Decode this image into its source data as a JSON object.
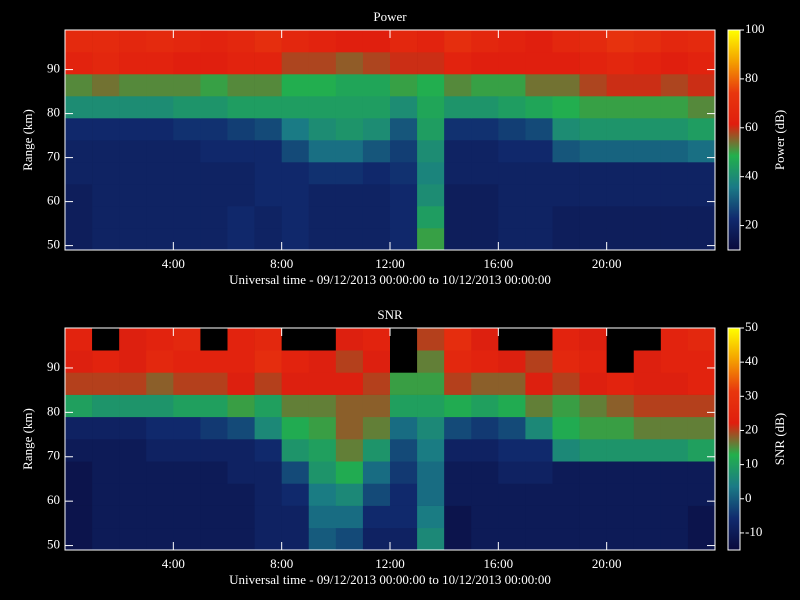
{
  "chart_data": [
    {
      "type": "heatmap",
      "title": "Power",
      "xlabel": "Universal time - 09/12/2013 00:00:00 to 10/12/2013 00:00:00",
      "ylabel": "Range (km)",
      "colorbar_label": "Power (dB)",
      "x": [
        0.5,
        1.5,
        2.5,
        3.5,
        4.5,
        5.5,
        6.5,
        7.5,
        8.5,
        9.5,
        10.5,
        11.5,
        12.5,
        13.5,
        14.5,
        15.5,
        16.5,
        17.5,
        18.5,
        19.5,
        20.5,
        21.5,
        22.5,
        23.5
      ],
      "y": [
        51.5,
        56.5,
        61.5,
        66.5,
        71.5,
        76.5,
        81.5,
        86.5,
        91.5,
        96.5
      ],
      "values": [
        [
          18,
          20,
          20,
          20,
          20,
          20,
          22,
          20,
          22,
          20,
          20,
          20,
          22,
          50,
          18,
          18,
          20,
          20,
          18,
          18,
          18,
          18,
          18,
          18
        ],
        [
          18,
          20,
          20,
          20,
          20,
          20,
          22,
          20,
          22,
          20,
          20,
          20,
          22,
          44,
          18,
          18,
          20,
          20,
          18,
          18,
          18,
          18,
          18,
          18
        ],
        [
          18,
          20,
          20,
          20,
          20,
          20,
          20,
          22,
          22,
          20,
          20,
          20,
          22,
          40,
          18,
          18,
          20,
          20,
          20,
          20,
          20,
          20,
          20,
          20
        ],
        [
          20,
          20,
          20,
          20,
          20,
          20,
          20,
          22,
          22,
          24,
          24,
          22,
          24,
          38,
          20,
          20,
          20,
          20,
          20,
          20,
          20,
          20,
          20,
          20
        ],
        [
          20,
          20,
          20,
          20,
          20,
          22,
          22,
          22,
          28,
          34,
          34,
          30,
          26,
          40,
          20,
          20,
          22,
          22,
          30,
          32,
          32,
          32,
          32,
          34
        ],
        [
          22,
          22,
          22,
          22,
          24,
          24,
          26,
          28,
          36,
          40,
          42,
          40,
          30,
          44,
          24,
          24,
          26,
          28,
          40,
          42,
          42,
          42,
          42,
          44
        ],
        [
          40,
          40,
          40,
          40,
          42,
          42,
          44,
          44,
          44,
          44,
          44,
          44,
          40,
          46,
          42,
          42,
          44,
          46,
          48,
          50,
          50,
          50,
          50,
          52
        ],
        [
          52,
          54,
          52,
          52,
          52,
          50,
          52,
          52,
          48,
          48,
          46,
          46,
          50,
          48,
          52,
          50,
          50,
          54,
          54,
          58,
          60,
          60,
          58,
          60
        ],
        [
          64,
          66,
          64,
          64,
          62,
          62,
          64,
          64,
          58,
          58,
          56,
          58,
          60,
          60,
          64,
          62,
          62,
          62,
          62,
          64,
          66,
          64,
          62,
          64
        ],
        [
          68,
          68,
          66,
          68,
          66,
          64,
          66,
          70,
          66,
          64,
          62,
          62,
          66,
          64,
          70,
          66,
          64,
          62,
          66,
          68,
          72,
          70,
          66,
          68
        ]
      ],
      "xlim": [
        0,
        24
      ],
      "xticks": [
        {
          "value": 4,
          "label": "4:00"
        },
        {
          "value": 8,
          "label": "8:00"
        },
        {
          "value": 12,
          "label": "12:00"
        },
        {
          "value": 16,
          "label": "16:00"
        },
        {
          "value": 20,
          "label": "20:00"
        }
      ],
      "ylim": [
        49,
        99
      ],
      "yticks": [
        50,
        60,
        70,
        80,
        90
      ],
      "clim": [
        10,
        100
      ],
      "cticks": [
        20,
        40,
        60,
        80,
        100
      ],
      "colormap": [
        "#0a0a3c",
        "#102a6e",
        "#1a7a86",
        "#22b04c",
        "#e01e0e",
        "#e8360e",
        "#f4a000",
        "#ffff00"
      ]
    },
    {
      "type": "heatmap",
      "title": "SNR",
      "xlabel": "Universal time - 09/12/2013 00:00:00 to 10/12/2013 00:00:00",
      "ylabel": "Range (km)",
      "colorbar_label": "SNR (dB)",
      "x": [
        0.5,
        1.5,
        2.5,
        3.5,
        4.5,
        5.5,
        6.5,
        7.5,
        8.5,
        9.5,
        10.5,
        11.5,
        12.5,
        13.5,
        14.5,
        15.5,
        16.5,
        17.5,
        18.5,
        19.5,
        20.5,
        21.5,
        22.5,
        23.5
      ],
      "y": [
        51.5,
        56.5,
        61.5,
        66.5,
        71.5,
        76.5,
        81.5,
        86.5,
        91.5,
        96.5
      ],
      "values": [
        [
          -12,
          -10,
          -10,
          -10,
          -10,
          -10,
          -10,
          -8,
          -8,
          0,
          -2,
          -8,
          -8,
          6,
          -12,
          -10,
          -10,
          -10,
          -10,
          -10,
          -10,
          -10,
          -10,
          -12
        ],
        [
          -12,
          -10,
          -10,
          -10,
          -10,
          -10,
          -10,
          -8,
          -8,
          2,
          2,
          -6,
          -6,
          4,
          -12,
          -10,
          -10,
          -10,
          -10,
          -10,
          -10,
          -10,
          -10,
          -12
        ],
        [
          -12,
          -10,
          -10,
          -10,
          -10,
          -10,
          -10,
          -8,
          -6,
          4,
          6,
          -2,
          -6,
          2,
          -10,
          -10,
          -10,
          -10,
          -10,
          -10,
          -10,
          -10,
          -10,
          -10
        ],
        [
          -12,
          -10,
          -10,
          -10,
          -10,
          -10,
          -8,
          -8,
          -2,
          8,
          12,
          2,
          -4,
          2,
          -10,
          -10,
          -8,
          -8,
          -10,
          -10,
          -10,
          -10,
          -10,
          -10
        ],
        [
          -10,
          -10,
          -10,
          -8,
          -8,
          -8,
          -8,
          -6,
          8,
          10,
          16,
          8,
          -2,
          4,
          -8,
          -8,
          -6,
          -6,
          6,
          8,
          8,
          8,
          8,
          10
        ],
        [
          -8,
          -8,
          -8,
          -6,
          -6,
          -4,
          -2,
          6,
          12,
          14,
          18,
          16,
          2,
          6,
          -2,
          -4,
          -2,
          6,
          12,
          14,
          14,
          16,
          16,
          16
        ],
        [
          10,
          8,
          8,
          8,
          10,
          10,
          14,
          10,
          16,
          16,
          18,
          18,
          10,
          10,
          12,
          10,
          12,
          16,
          14,
          16,
          18,
          20,
          20,
          20
        ],
        [
          20,
          20,
          20,
          18,
          20,
          20,
          22,
          20,
          22,
          22,
          22,
          20,
          14,
          14,
          20,
          18,
          18,
          22,
          20,
          22,
          24,
          22,
          22,
          24
        ],
        [
          22,
          24,
          22,
          26,
          24,
          24,
          24,
          28,
          24,
          22,
          20,
          22,
          null,
          16,
          26,
          24,
          22,
          20,
          26,
          24,
          null,
          22,
          24,
          24
        ],
        [
          24,
          null,
          22,
          24,
          26,
          null,
          24,
          26,
          null,
          null,
          22,
          24,
          null,
          20,
          28,
          22,
          null,
          null,
          24,
          22,
          null,
          null,
          24,
          26
        ]
      ],
      "xlim": [
        0,
        24
      ],
      "xticks": [
        {
          "value": 4,
          "label": "4:00"
        },
        {
          "value": 8,
          "label": "8:00"
        },
        {
          "value": 12,
          "label": "12:00"
        },
        {
          "value": 16,
          "label": "16:00"
        },
        {
          "value": 20,
          "label": "20:00"
        }
      ],
      "ylim": [
        49,
        99
      ],
      "yticks": [
        50,
        60,
        70,
        80,
        90
      ],
      "clim": [
        -15,
        50
      ],
      "cticks": [
        -10,
        0,
        10,
        20,
        30,
        40,
        50
      ],
      "colormap": [
        "#0a0a3c",
        "#102a6e",
        "#1a7a86",
        "#22b04c",
        "#e01e0e",
        "#e8360e",
        "#f4a000",
        "#ffff00"
      ]
    }
  ]
}
